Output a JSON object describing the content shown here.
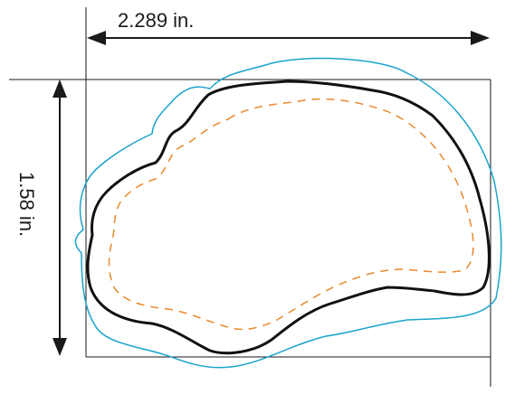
{
  "dimensions": {
    "width_label": "2.289 in.",
    "height_label": "1.58 in."
  },
  "colors": {
    "frame": "#1a1a1a",
    "cut_line": "#111111",
    "bleed_line": "#1aa3cc",
    "safe_line": "#e8892b"
  }
}
